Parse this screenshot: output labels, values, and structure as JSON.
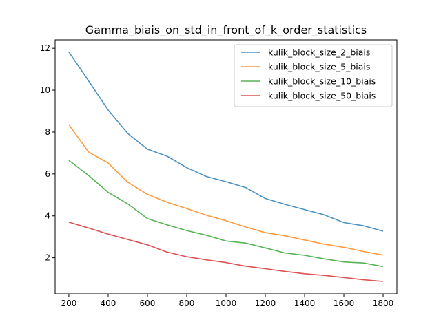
{
  "chart_data": {
    "type": "line",
    "title": "Gamma_biais_on_std_in_front_of_k_order_statistics",
    "xlabel": "",
    "ylabel": "",
    "xlim": [
      130,
      1870
    ],
    "ylim": [
      0.28,
      12.4
    ],
    "x_ticks": [
      200,
      400,
      600,
      800,
      1000,
      1200,
      1400,
      1600,
      1800
    ],
    "y_ticks": [
      2,
      4,
      6,
      8,
      10,
      12
    ],
    "grid": false,
    "legend_position": "top-right",
    "x": [
      200,
      300,
      400,
      500,
      600,
      700,
      800,
      900,
      1000,
      1100,
      1200,
      1300,
      1400,
      1500,
      1600,
      1700,
      1800
    ],
    "series": [
      {
        "name": "kulik_block_size_2_biais",
        "color": "#1f77b4",
        "values": [
          11.82,
          10.45,
          9.05,
          7.93,
          7.18,
          6.85,
          6.3,
          5.88,
          5.63,
          5.35,
          4.83,
          4.55,
          4.3,
          4.05,
          3.68,
          3.53,
          3.27
        ]
      },
      {
        "name": "kulik_block_size_5_biais",
        "color": "#ff7f0e",
        "values": [
          8.35,
          7.05,
          6.52,
          5.6,
          5.03,
          4.65,
          4.35,
          4.03,
          3.77,
          3.47,
          3.2,
          3.05,
          2.85,
          2.65,
          2.5,
          2.3,
          2.13
        ]
      },
      {
        "name": "kulik_block_size_10_biais",
        "color": "#2ca02c",
        "values": [
          6.65,
          5.93,
          5.12,
          4.57,
          3.87,
          3.57,
          3.3,
          3.08,
          2.8,
          2.7,
          2.47,
          2.23,
          2.12,
          1.95,
          1.8,
          1.75,
          1.58
        ]
      },
      {
        "name": "kulik_block_size_50_biais",
        "color": "#d62728",
        "values": [
          3.7,
          3.42,
          3.13,
          2.87,
          2.62,
          2.27,
          2.05,
          1.9,
          1.77,
          1.6,
          1.48,
          1.35,
          1.24,
          1.16,
          1.06,
          0.95,
          0.87
        ]
      }
    ]
  }
}
